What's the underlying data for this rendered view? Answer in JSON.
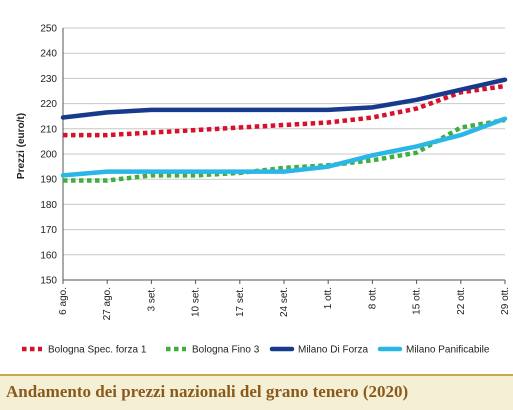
{
  "caption": "Andamento dei prezzi nazionali del grano tenero (2020)",
  "chart_data": {
    "type": "line",
    "title": "",
    "xlabel": "",
    "ylabel": "Prezzi (euro/t)",
    "ylim": [
      150,
      250
    ],
    "yticks": [
      150,
      160,
      170,
      180,
      190,
      200,
      210,
      220,
      230,
      240,
      250
    ],
    "grid": "horizontal",
    "legend_placement": "bottom",
    "categories": [
      "6 ago.",
      "27 ago.",
      "3 set.",
      "10 set.",
      "17 set.",
      "24 set.",
      "1 ott.",
      "8 ott.",
      "15 ott.",
      "22 ott.",
      "29 ott."
    ],
    "series": [
      {
        "name": "Bologna Spec. forza 1",
        "color": "#d9102c",
        "style": "dotted",
        "values": [
          207.5,
          207.5,
          208.5,
          209.5,
          210.5,
          211.5,
          212.5,
          214.5,
          218,
          224.5,
          227
        ]
      },
      {
        "name": "Bologna Fino 3",
        "color": "#3fae3f",
        "style": "dotted",
        "values": [
          189.5,
          189.5,
          191.5,
          191.5,
          192.5,
          194.5,
          195.5,
          197.5,
          200.5,
          210.5,
          213.5
        ]
      },
      {
        "name": "Milano Di Forza",
        "color": "#173a8c",
        "style": "solid",
        "values": [
          214.5,
          216.5,
          217.5,
          217.5,
          217.5,
          217.5,
          217.5,
          218.5,
          221.5,
          225.5,
          229.5
        ]
      },
      {
        "name": "Milano Panificabile",
        "color": "#2bb6e8",
        "style": "solid",
        "values": [
          191.5,
          193,
          193,
          193,
          193,
          193,
          195,
          199.5,
          203,
          207.5,
          214
        ]
      }
    ]
  }
}
